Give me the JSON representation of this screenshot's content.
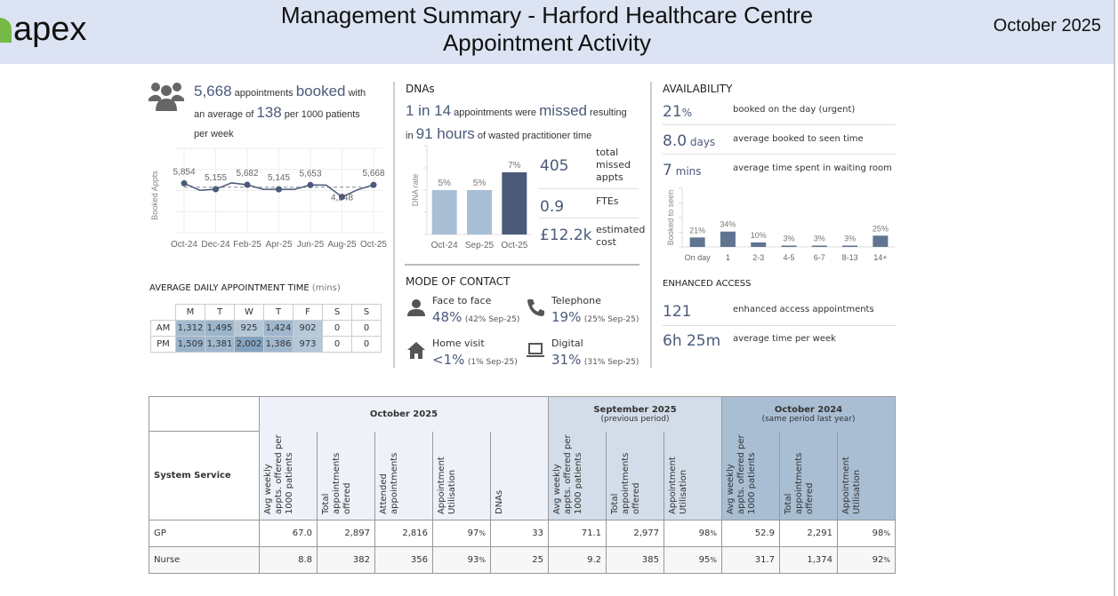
{
  "header": {
    "logo": "apex",
    "title_line1": "Management Summary - Harford Healthcare Centre",
    "title_line2": "Appointment Activity",
    "period": "October 2025"
  },
  "booked": {
    "count": "5,668",
    "t1": "appointments",
    "kw": "booked",
    "t2": "with",
    "t3": "an average of",
    "rate": "138",
    "t4": "per 1000 patients",
    "t5": "per week"
  },
  "chart_data": [
    {
      "type": "line",
      "ylabel": "Booked Appts",
      "x": [
        "Oct-24",
        "Nov-24",
        "Dec-24",
        "Jan-25",
        "Feb-25",
        "Mar-25",
        "Apr-25",
        "May-25",
        "Jun-25",
        "Jul-25",
        "Aug-25",
        "Sep-25",
        "Oct-25"
      ],
      "xticks": [
        "Oct-24",
        "Dec-24",
        "Feb-25",
        "Apr-25",
        "Jun-25",
        "Aug-25",
        "Oct-25"
      ],
      "values": [
        5854,
        5030,
        5155,
        5900,
        5682,
        5150,
        5145,
        5150,
        5653,
        5640,
        4248,
        5100,
        5668
      ],
      "labels": {
        "Oct-24": "5,854",
        "Dec-24": "5,155",
        "Feb-25": "5,682",
        "Apr-25": "5,145",
        "Jun-25": "5,653",
        "Aug-25": "4,248",
        "Oct-25": "5,668"
      },
      "average": 5400,
      "ylim": [
        0,
        10000
      ],
      "color": "#4a5a7a"
    },
    {
      "type": "bar",
      "ylabel": "DNA rate",
      "categories": [
        "Oct-24",
        "Sep-25",
        "Oct-25"
      ],
      "values": [
        5,
        5,
        7
      ],
      "labels": [
        "5%",
        "5%",
        "7%"
      ],
      "colors": [
        "#a8bfd6",
        "#a8bfd6",
        "#4a5a78"
      ],
      "ylim": [
        0,
        10
      ]
    },
    {
      "type": "bar",
      "ylabel": "Booked to seen",
      "categories": [
        "On day",
        "1",
        "2-3",
        "4-5",
        "6-7",
        "8-13",
        "14+"
      ],
      "values": [
        21,
        34,
        10,
        3,
        3,
        3,
        25
      ],
      "labels": [
        "21%",
        "34%",
        "10%",
        "3%",
        "3%",
        "3%",
        "25%"
      ],
      "color": "#5f7591",
      "ylim": [
        0,
        130
      ]
    }
  ],
  "dna": {
    "heading": "DNAs",
    "ratio": "1 in 14",
    "t1": "appointments were",
    "kw": "missed",
    "t2": "resulting",
    "t3": "in",
    "hours": "91 hours",
    "t4": "of wasted practitioner time",
    "stats": [
      {
        "value": "405",
        "label": "total missed appts"
      },
      {
        "value": "0.9",
        "label": "FTEs"
      },
      {
        "value": "£12.2k",
        "label": "estimated cost"
      }
    ]
  },
  "availability": {
    "heading": "AVAILABILITY",
    "rows": [
      {
        "value": "21",
        "unit": "%",
        "label": "booked on the day (urgent)"
      },
      {
        "value": "8.0",
        "unit": " days",
        "label": "average booked to seen time"
      },
      {
        "value": "7",
        "unit": " mins",
        "label": "average time spent in waiting room"
      }
    ]
  },
  "enhanced": {
    "heading": "ENHANCED ACCESS",
    "rows": [
      {
        "value": "121",
        "label": "enhanced access appointments"
      },
      {
        "value": "6h 25m",
        "label": "average time per week"
      }
    ]
  },
  "daily": {
    "heading": "AVERAGE DAILY APPOINTMENT TIME",
    "unit": "(mins)",
    "days": [
      "M",
      "T",
      "W",
      "T",
      "F",
      "S",
      "S"
    ],
    "rows": [
      {
        "label": "AM",
        "values": [
          "1,312",
          "1,495",
          "925",
          "1,424",
          "902",
          "0",
          "0"
        ]
      },
      {
        "label": "PM",
        "values": [
          "1,509",
          "1,381",
          "2,002",
          "1,386",
          "973",
          "0",
          "0"
        ]
      }
    ]
  },
  "contact": {
    "heading": "MODE OF CONTACT",
    "items": [
      {
        "label": "Face to face",
        "value": "48%",
        "prev": "(42% Sep-25)",
        "icon": "person-icon"
      },
      {
        "label": "Telephone",
        "value": "19%",
        "prev": "(25% Sep-25)",
        "icon": "phone-icon"
      },
      {
        "label": "Home visit",
        "value": "<1%",
        "prev": "(1% Sep-25)",
        "icon": "home-icon"
      },
      {
        "label": "Digital",
        "value": "31%",
        "prev": "(31% Sep-25)",
        "icon": "laptop-icon"
      }
    ]
  },
  "table": {
    "row_header": "System Service",
    "groups": [
      {
        "title": "October 2025",
        "sub": "",
        "bg": "#eef1f8",
        "cols": [
          "Avg weekly appts. offered per 1000 patients",
          "Total appointments offered",
          "Attended appointments",
          "Appointment Utilisation",
          "DNAs"
        ]
      },
      {
        "title": "September 2025",
        "sub": "(previous period)",
        "bg": "#d3dde9",
        "cols": [
          "Avg weekly appts. offered per 1000 patients",
          "Total appointments offered",
          "Appointment Utilisation"
        ]
      },
      {
        "title": "October 2024",
        "sub": "(same period last year)",
        "bg": "#a9bed3",
        "cols": [
          "Avg weekly appts. offered per 1000 patients",
          "Total appointments offered",
          "Appointment Utilisation"
        ]
      }
    ],
    "rows": [
      {
        "name": "GP",
        "values": [
          "67.0",
          "2,897",
          "2,816",
          "97",
          "33",
          "71.1",
          "2,977",
          "98",
          "52.9",
          "2,291",
          "98"
        ]
      },
      {
        "name": "Nurse",
        "values": [
          "8.8",
          "382",
          "356",
          "93",
          "25",
          "9.2",
          "385",
          "95",
          "31.7",
          "1,374",
          "92"
        ]
      }
    ]
  }
}
